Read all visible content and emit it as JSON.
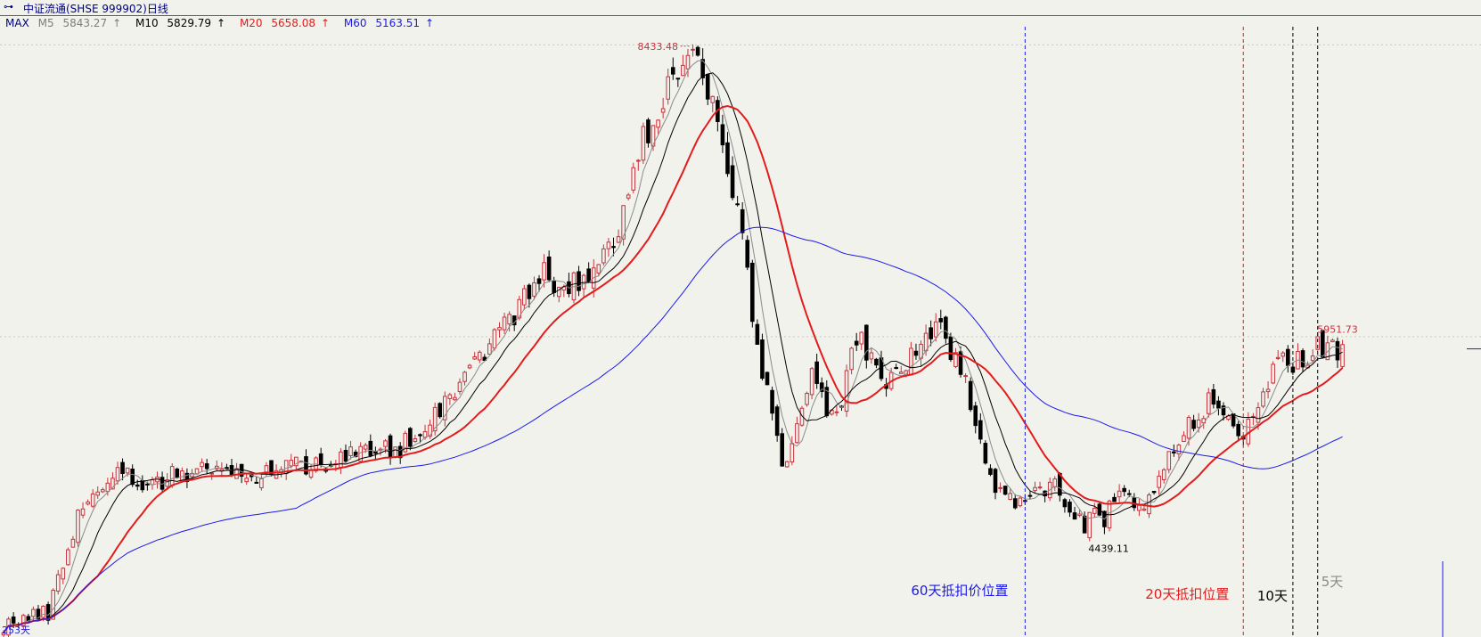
{
  "header": {
    "title": "中证流通(SHSE 999902)日线"
  },
  "legend": {
    "mode_label": "MAX",
    "items": [
      {
        "name": "M5",
        "value": "5843.27",
        "color": "#7d7d7d"
      },
      {
        "name": "M10",
        "value": "5829.79",
        "color": "#000000"
      },
      {
        "name": "M20",
        "value": "5658.08",
        "color": "#e21c1c"
      },
      {
        "name": "M60",
        "value": "5163.51",
        "color": "#1a1aea"
      }
    ],
    "up_arrow": "↑"
  },
  "annotations": {
    "high_value": "8433.48",
    "low_value": "4439.11",
    "last_high": "5951.73",
    "start_label": "253天",
    "m60_offset_label": "60天抵扣价位置",
    "m20_offset_label": "20天抵扣位置",
    "m10_label": "10天",
    "m5_label": "5天"
  },
  "chart_data": {
    "type": "candlestick",
    "title": "中证流通(SHSE 999902)日线",
    "ylim": [
      3600,
      8650
    ],
    "y_reference_levels": [
      8430,
      6050
    ],
    "points": [
      [
        0,
        3700
      ],
      [
        9,
        3800
      ],
      [
        15,
        4600
      ],
      [
        22,
        4950
      ],
      [
        29,
        4850
      ],
      [
        41,
        5000
      ],
      [
        48,
        4880
      ],
      [
        56,
        5000
      ],
      [
        63,
        5020
      ],
      [
        71,
        5080
      ],
      [
        80,
        5150
      ],
      [
        86,
        5380
      ],
      [
        99,
        6050
      ],
      [
        109,
        6550
      ],
      [
        116,
        6450
      ],
      [
        123,
        6800
      ],
      [
        129,
        7650
      ],
      [
        134,
        8100
      ],
      [
        139,
        8430
      ],
      [
        143,
        7900
      ],
      [
        147,
        7300
      ],
      [
        152,
        6000
      ],
      [
        157,
        5000
      ],
      [
        163,
        5700
      ],
      [
        168,
        5350
      ],
      [
        172,
        6050
      ],
      [
        178,
        5650
      ],
      [
        184,
        5950
      ],
      [
        189,
        6100
      ],
      [
        195,
        5550
      ],
      [
        200,
        4800
      ],
      [
        206,
        4700
      ],
      [
        212,
        4850
      ],
      [
        218,
        4500
      ],
      [
        224,
        4750
      ],
      [
        230,
        4650
      ],
      [
        237,
        5200
      ],
      [
        243,
        5500
      ],
      [
        250,
        5300
      ],
      [
        257,
        5800
      ],
      [
        265,
        5950
      ],
      [
        270,
        5900
      ]
    ],
    "ma_periods": [
      5,
      10,
      20,
      60
    ],
    "ma_colors": {
      "5": "#8a8a8a",
      "10": "#000000",
      "20": "#e21c1c",
      "60": "#1a1aea"
    },
    "markers": {
      "high": {
        "index": 139,
        "value": 8433.48
      },
      "low": {
        "index": 222,
        "value": 4439.11
      }
    },
    "offset_lines": [
      {
        "index": 206,
        "label": "60天抵扣价位置",
        "color": "#1a1aea"
      },
      {
        "index": 250,
        "label": "20天抵扣位置",
        "color": "#e21c1c"
      },
      {
        "index": 260,
        "label": "10天",
        "color": "#000000"
      },
      {
        "index": 265,
        "label": "5天",
        "color": "#000000"
      }
    ]
  }
}
